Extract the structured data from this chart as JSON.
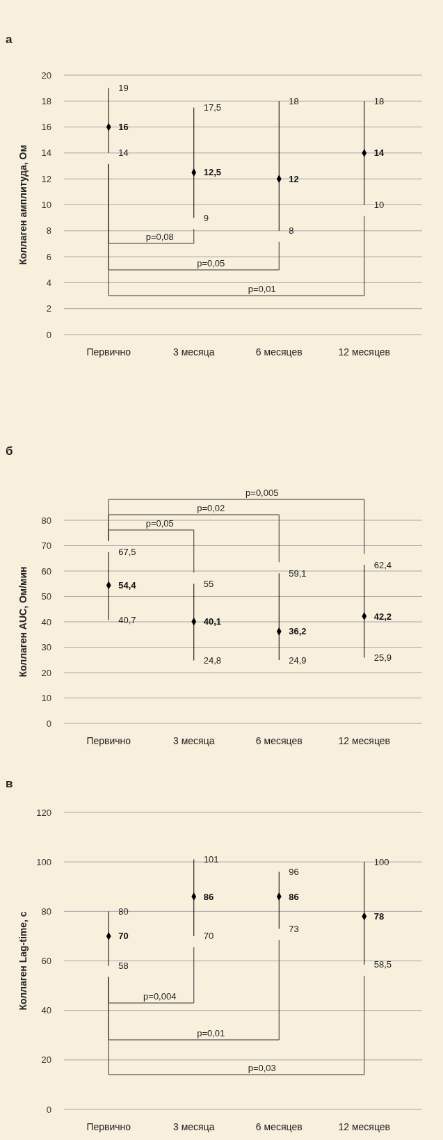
{
  "chart_data": [
    {
      "type": "scatter",
      "title": "а",
      "ylabel": "Коллаген амплитуда, Ом",
      "categories": [
        "Первично",
        "3 месяца",
        "6 месяцев",
        "12 месяцев"
      ],
      "values": [
        16,
        12.5,
        12,
        14
      ],
      "errors": [
        [
          14,
          19
        ],
        [
          9,
          17.5
        ],
        [
          8,
          18
        ],
        [
          10,
          18
        ]
      ],
      "value_labels": [
        "16",
        "12,5",
        "12",
        "14"
      ],
      "color": "#000000",
      "marker": "diamond",
      "ylim": [
        0,
        20
      ],
      "yticks": [
        0,
        2,
        4,
        6,
        8,
        10,
        12,
        14,
        16,
        18,
        20
      ],
      "grid": "y",
      "annotations": [
        "p=0,08",
        "p=0,05",
        "p=0,01",
        {
          "text": "19",
          "x": "Первично",
          "y": 19
        },
        {
          "text": "14",
          "x": "Первично",
          "y": 14
        },
        {
          "text": "17,5",
          "x": "3 месяца",
          "y": 17.5
        },
        {
          "text": "9",
          "x": "3 месяца",
          "y": 9
        },
        {
          "text": "18",
          "x": "6 месяцев",
          "y": 18
        },
        {
          "text": "8",
          "x": "6 месяцев",
          "y": 8
        },
        {
          "text": "18",
          "x": "12 месяцев",
          "y": 18
        },
        {
          "text": "10",
          "x": "12 месяцев",
          "y": 10
        }
      ]
    },
    {
      "type": "scatter",
      "title": "б",
      "ylabel": "Коллаген AUC, Ом/мин",
      "categories": [
        "Первично",
        "3 месяца",
        "6 месяцев",
        "12 месяцев"
      ],
      "values": [
        54.4,
        40.1,
        36.2,
        42.2
      ],
      "errors": [
        [
          40.7,
          67.5
        ],
        [
          24.8,
          55
        ],
        [
          24.9,
          59.1
        ],
        [
          25.9,
          62.4
        ]
      ],
      "value_labels": [
        "54,4",
        "40,1",
        "36,2",
        "42,2"
      ],
      "color": "#000000",
      "marker": "diamond",
      "ylim": [
        0,
        80
      ],
      "yticks": [
        0,
        10,
        20,
        30,
        40,
        50,
        60,
        70,
        80
      ],
      "grid": "y",
      "annotations": [
        "p=0,05",
        "p=0,02",
        "p=0,005",
        {
          "text": "67,5",
          "x": "Первично",
          "y": 67.5
        },
        {
          "text": "40,7",
          "x": "Первично",
          "y": 40.7
        },
        {
          "text": "55",
          "x": "3 месяца",
          "y": 55
        },
        {
          "text": "24,8",
          "x": "3 месяца",
          "y": 24.8
        },
        {
          "text": "59,1",
          "x": "6 месяцев",
          "y": 59.1
        },
        {
          "text": "24,9",
          "x": "6 месяцев",
          "y": 24.9
        },
        {
          "text": "62,4",
          "x": "12 месяцев",
          "y": 62.4
        },
        {
          "text": "25,9",
          "x": "12 месяцев",
          "y": 25.9
        }
      ]
    },
    {
      "type": "scatter",
      "title": "в",
      "ylabel": "Коллаген Lag-time, с",
      "categories": [
        "Первично",
        "3 месяца",
        "6 месяцев",
        "12 месяцев"
      ],
      "values": [
        70,
        86,
        86,
        78
      ],
      "errors": [
        [
          58,
          80
        ],
        [
          70,
          101
        ],
        [
          73,
          96
        ],
        [
          58.5,
          100
        ]
      ],
      "value_labels": [
        "70",
        "86",
        "86",
        "78"
      ],
      "color": "#000000",
      "marker": "diamond",
      "ylim": [
        0,
        120
      ],
      "yticks": [
        0,
        20,
        40,
        60,
        80,
        100,
        120
      ],
      "grid": "y",
      "annotations": [
        "p=0,004",
        "p=0,01",
        "p=0,03",
        {
          "text": "80",
          "x": "Первично",
          "y": 80
        },
        {
          "text": "58",
          "x": "Первично",
          "y": 58
        },
        {
          "text": "101",
          "x": "3 месяца",
          "y": 101
        },
        {
          "text": "70",
          "x": "3 месяца",
          "y": 70
        },
        {
          "text": "96",
          "x": "6 месяцев",
          "y": 96
        },
        {
          "text": "73",
          "x": "6 месяцев",
          "y": 73
        },
        {
          "text": "100",
          "x": "12 месяцев",
          "y": 100
        },
        {
          "text": "58,5",
          "x": "12 месяцев",
          "y": 58.5
        }
      ]
    }
  ]
}
